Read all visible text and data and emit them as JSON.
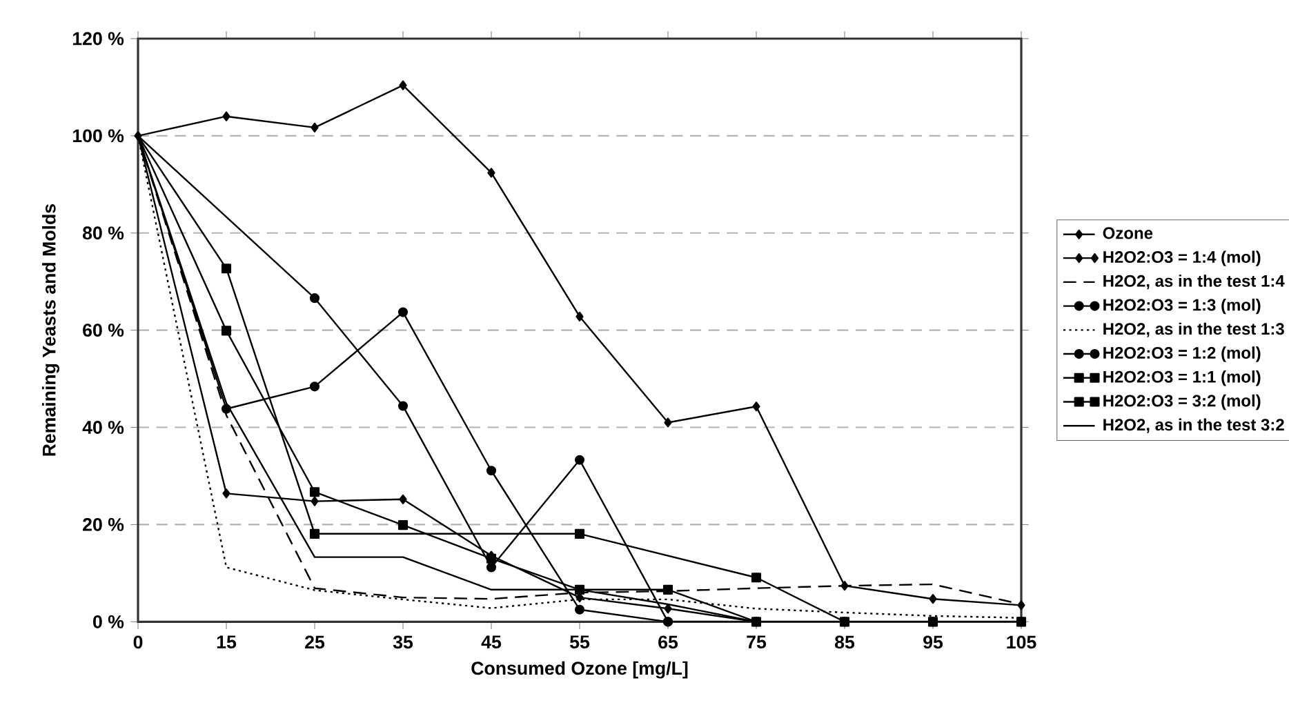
{
  "chart_data": {
    "type": "line",
    "xlabel": "Consumed Ozone [mg/L]",
    "ylabel": "Remaining Yeasts and Molds",
    "categories": [
      "0",
      "15",
      "25",
      "35",
      "45",
      "55",
      "65",
      "75",
      "85",
      "95",
      "105"
    ],
    "ylim": [
      0,
      120
    ],
    "yticks": [
      {
        "value": 0,
        "label": "0 %"
      },
      {
        "value": 20,
        "label": "20 %"
      },
      {
        "value": 40,
        "label": "40 %"
      },
      {
        "value": 60,
        "label": "60 %"
      },
      {
        "value": 80,
        "label": "80 %"
      },
      {
        "value": 100,
        "label": "100 %"
      },
      {
        "value": 120,
        "label": "120 %"
      }
    ],
    "grid": "y",
    "legend": "right",
    "series": [
      {
        "name": "Ozone",
        "color": "#000000",
        "marker": "diamond",
        "line_style": "solid",
        "values": [
          100,
          104,
          101.7,
          110.4,
          92.4,
          62.8,
          41,
          44.3,
          7.4,
          4.7,
          3.4
        ]
      },
      {
        "name": "H2O2:O3 = 1:4 (mol)",
        "color": "#000000",
        "marker": "diamond",
        "line_style": "solid",
        "values": [
          100,
          26.4,
          24.8,
          25.2,
          13.6,
          5,
          2.7,
          0,
          0,
          0,
          0
        ]
      },
      {
        "name": "H2O2, as in the test 1:4",
        "color": "#000000",
        "marker": "none",
        "line_style": "dashed",
        "values": [
          100,
          42.5,
          6.9,
          5,
          4.7,
          6,
          6.3,
          6.9,
          7.4,
          7.7,
          3.6
        ]
      },
      {
        "name": "H2O2:O3 = 1:3 (mol)",
        "color": "#000000",
        "marker": "circle",
        "line_style": "solid",
        "values": [
          100,
          43.8,
          48.4,
          63.7,
          31.1,
          2.5,
          0,
          0,
          0,
          0,
          0
        ]
      },
      {
        "name": "H2O2, as in the test 1:3",
        "color": "#000000",
        "marker": "none",
        "line_style": "dotted",
        "values": [
          100,
          11.2,
          6.5,
          4.6,
          2.8,
          4.6,
          4.6,
          2.7,
          1.9,
          1.2,
          0.8
        ]
      },
      {
        "name": "H2O2:O3 = 1:2 (mol)",
        "color": "#000000",
        "marker": "circle",
        "line_style": "solid",
        "values": [
          100,
          null,
          66.6,
          44.4,
          11.2,
          33.3,
          0,
          0,
          0,
          0,
          0
        ]
      },
      {
        "name": "H2O2:O3 = 1:1 (mol)",
        "color": "#000000",
        "marker": "square",
        "line_style": "solid",
        "values": [
          100,
          59.9,
          26.7,
          19.9,
          13,
          6.6,
          6.6,
          0,
          null,
          null,
          null
        ]
      },
      {
        "name": "H2O2:O3 = 3:2 (mol)",
        "color": "#000000",
        "marker": "square",
        "line_style": "solid",
        "values": [
          100,
          72.7,
          18.1,
          null,
          null,
          18.1,
          null,
          9.1,
          0,
          0,
          0
        ]
      },
      {
        "name": "H2O2, as in the test 3:2",
        "color": "#000000",
        "marker": "none",
        "line_style": "solid",
        "values": [
          100,
          45,
          13.3,
          13.3,
          6.6,
          6.6,
          3.6,
          0,
          0,
          0,
          0
        ]
      }
    ]
  }
}
